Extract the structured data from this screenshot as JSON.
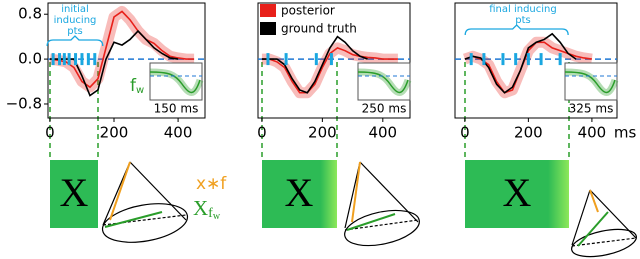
{
  "chart_data": [
    {
      "type": "line",
      "annotation": [
        "initial",
        "inducing",
        "pts"
      ],
      "inset_label": "150 ms",
      "x": [
        0,
        25,
        50,
        75,
        100,
        125,
        150,
        175,
        200,
        225,
        250,
        275,
        300,
        325,
        350,
        375,
        400,
        425,
        450
      ],
      "series": [
        {
          "name": "posterior",
          "color": "#e8201a",
          "values": [
            0.0,
            -0.02,
            -0.05,
            -0.15,
            -0.4,
            -0.5,
            -0.35,
            0.2,
            0.75,
            0.85,
            0.7,
            0.5,
            0.35,
            0.28,
            0.15,
            0.05,
            0.02,
            0.0,
            0.0
          ]
        },
        {
          "name": "ground truth",
          "color": "#000000",
          "values": [
            0,
            0,
            0,
            0,
            -0.3,
            -0.65,
            -0.55,
            0.0,
            0.3,
            0.25,
            0.35,
            0.5,
            0.35,
            0.2,
            0.1,
            0.02,
            0.0,
            null,
            null
          ]
        }
      ],
      "inducing_points": [
        10,
        30,
        45,
        60,
        80,
        100,
        120,
        140
      ],
      "xlim": [
        -6,
        484
      ],
      "ylim": [
        -1.05,
        1.0
      ],
      "xticks": [
        0,
        200,
        400
      ],
      "yticks": [
        0.8,
        {
          "value": 0,
          "label": "0.0"
        },
        {
          "value": -0.8,
          "label": "−0.8"
        }
      ]
    },
    {
      "type": "line",
      "inset_label": "250 ms",
      "x": [
        0,
        25,
        50,
        75,
        100,
        125,
        150,
        175,
        200,
        225,
        250,
        275,
        300,
        325,
        350,
        375,
        400,
        425,
        450
      ],
      "series": [
        {
          "name": "posterior",
          "color": "#e8201a",
          "values": [
            0,
            0,
            -0.05,
            -0.15,
            -0.4,
            -0.6,
            -0.6,
            -0.45,
            -0.15,
            0.1,
            0.2,
            0.15,
            0.08,
            0.05,
            0.03,
            0.02,
            0.0,
            0,
            0
          ]
        },
        {
          "name": "ground truth",
          "color": "#000000",
          "values": [
            0,
            0,
            0,
            -0.1,
            -0.35,
            -0.55,
            -0.6,
            -0.4,
            -0.1,
            0.2,
            0.4,
            0.3,
            0.15,
            0.05,
            0.0,
            null,
            null,
            null,
            null
          ]
        }
      ],
      "inducing_points": [
        20,
        80,
        180,
        230
      ],
      "xlim": [
        -13,
        490
      ],
      "ylim": [
        -1.05,
        1.0
      ],
      "xticks": [
        0,
        200,
        400
      ]
    },
    {
      "type": "line",
      "annotation": [
        "final inducing",
        "pts"
      ],
      "inset_label": "325 ms",
      "x_unit": "ms",
      "x": [
        0,
        25,
        50,
        75,
        100,
        125,
        150,
        175,
        200,
        225,
        250,
        275,
        300,
        325,
        350,
        375,
        400,
        425,
        450
      ],
      "series": [
        {
          "name": "posterior",
          "color": "#e8201a",
          "values": [
            0,
            0.05,
            0.0,
            -0.1,
            -0.4,
            -0.6,
            -0.55,
            -0.2,
            0.15,
            0.3,
            0.3,
            0.2,
            0.15,
            0.1,
            0.05,
            0.02,
            0,
            null,
            null
          ]
        },
        {
          "name": "ground truth",
          "color": "#000000",
          "values": [
            0,
            0.05,
            0.02,
            -0.15,
            -0.45,
            -0.6,
            -0.5,
            -0.2,
            0.2,
            0.3,
            0.35,
            0.45,
            0.3,
            0.1,
            0.0,
            null,
            null,
            null,
            null
          ]
        }
      ],
      "inducing_points": [
        20,
        60,
        120,
        160,
        200,
        240,
        300
      ],
      "xlim": [
        -31,
        479
      ],
      "ylim": [
        -1.05,
        1.0
      ],
      "xticks": [
        0,
        200,
        400
      ]
    }
  ],
  "inset_filter": {
    "symbol": "f",
    "sub": "w"
  },
  "bottom": {
    "box_label": "X",
    "conv_label": "x∗f",
    "filter_label": "X",
    "filter_sub": "f",
    "filter_subsub": "w"
  }
}
